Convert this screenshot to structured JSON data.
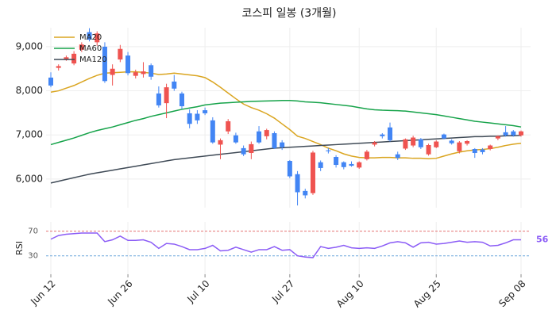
{
  "chart_data": [
    {
      "type": "candlestick",
      "title": "코스피 일봉 (3개월)",
      "categories": [
        "Jun 12",
        null,
        null,
        null,
        null,
        null,
        null,
        null,
        null,
        null,
        "Jun 26",
        null,
        null,
        null,
        null,
        null,
        null,
        null,
        null,
        null,
        "Jul 10",
        null,
        null,
        null,
        null,
        null,
        null,
        null,
        null,
        null,
        null,
        "Jul 27",
        null,
        null,
        null,
        null,
        null,
        null,
        null,
        null,
        "Aug 10",
        null,
        null,
        null,
        null,
        null,
        null,
        null,
        null,
        null,
        "Aug 25",
        null,
        null,
        null,
        null,
        null,
        null,
        null,
        null,
        null,
        null,
        "Sep 08"
      ],
      "open": [
        8300,
        8520,
        8720,
        8620,
        8930,
        9330,
        9100,
        9000,
        8360,
        8710,
        8800,
        8340,
        8380,
        8580,
        7940,
        7720,
        8210,
        7940,
        7490,
        7480,
        7560,
        7330,
        6780,
        7080,
        6990,
        6700,
        6590,
        7080,
        6970,
        7040,
        6830,
        6410,
        6110,
        5730,
        5680,
        6380,
        6650,
        6500,
        6380,
        6340,
        6260,
        6450,
        6780,
        7010,
        7170,
        6560,
        6690,
        6760,
        6900,
        6560,
        6720,
        7010,
        6870,
        6630,
        6800,
        6680,
        6670,
        6680,
        6920,
        7060,
        7080,
        6990
      ],
      "high": [
        8420,
        8600,
        8800,
        8900,
        9100,
        9420,
        9350,
        9100,
        8600,
        9040,
        8880,
        8480,
        8650,
        8620,
        8100,
        8160,
        8360,
        7980,
        7580,
        7560,
        7620,
        7400,
        6920,
        7360,
        7050,
        6760,
        6850,
        7200,
        7140,
        7080,
        6880,
        6430,
        6180,
        5780,
        6640,
        6420,
        6700,
        6540,
        6400,
        6400,
        6400,
        6660,
        6860,
        7040,
        7280,
        6620,
        6920,
        6980,
        6930,
        6800,
        6880,
        7030,
        6900,
        6860,
        6880,
        6700,
        6700,
        6780,
        6990,
        7200,
        7110,
        7100
      ],
      "low": [
        8080,
        8460,
        8680,
        8580,
        8880,
        9120,
        9020,
        8180,
        8120,
        8650,
        8350,
        8280,
        8300,
        8250,
        7620,
        7380,
        8000,
        7590,
        7150,
        7250,
        7450,
        6800,
        6450,
        7020,
        6800,
        6520,
        6450,
        6800,
        6900,
        6680,
        6660,
        6020,
        5400,
        5560,
        5640,
        6180,
        6580,
        6260,
        6220,
        6280,
        6230,
        6420,
        6740,
        6920,
        6850,
        6430,
        6660,
        6720,
        6680,
        6530,
        6700,
        6900,
        6780,
        6580,
        6760,
        6480,
        6560,
        6650,
        6880,
        6960,
        6960,
        6960
      ],
      "close": [
        8120,
        8560,
        8760,
        8840,
        9050,
        9160,
        9300,
        8220,
        8500,
        8950,
        8400,
        8420,
        8440,
        8320,
        7670,
        8080,
        8050,
        7650,
        7250,
        7330,
        7490,
        6830,
        6880,
        7310,
        6830,
        6560,
        6790,
        6830,
        7110,
        6700,
        6720,
        6060,
        5700,
        5630,
        6600,
        6250,
        6630,
        6320,
        6270,
        6300,
        6380,
        6620,
        6830,
        6970,
        6880,
        6480,
        6900,
        6940,
        6720,
        6770,
        6850,
        6920,
        6810,
        6830,
        6860,
        6590,
        6610,
        6760,
        6970,
        6990,
        6990,
        7080
      ],
      "up_color": "#ef5350",
      "down_color": "#4285f4",
      "series": [
        {
          "name": "MA20",
          "color": "#daa520",
          "values": [
            7970,
            8000,
            8060,
            8120,
            8200,
            8280,
            8350,
            8400,
            8410,
            8420,
            8430,
            8430,
            8420,
            8400,
            8370,
            8380,
            8400,
            8380,
            8360,
            8340,
            8300,
            8200,
            8080,
            7950,
            7820,
            7700,
            7620,
            7560,
            7480,
            7380,
            7250,
            7120,
            6970,
            6920,
            6850,
            6780,
            6700,
            6640,
            6570,
            6520,
            6490,
            6480,
            6480,
            6490,
            6490,
            6480,
            6480,
            6470,
            6470,
            6460,
            6470,
            6520,
            6570,
            6610,
            6640,
            6660,
            6670,
            6690,
            6720,
            6760,
            6790,
            6810
          ]
        },
        {
          "name": "MA60",
          "color": "#16a34a",
          "values": [
            6780,
            6830,
            6880,
            6930,
            6990,
            7050,
            7100,
            7140,
            7180,
            7230,
            7280,
            7330,
            7370,
            7420,
            7460,
            7500,
            7540,
            7580,
            7610,
            7640,
            7680,
            7700,
            7720,
            7730,
            7740,
            7750,
            7760,
            7765,
            7770,
            7775,
            7780,
            7780,
            7770,
            7750,
            7740,
            7730,
            7710,
            7690,
            7670,
            7650,
            7620,
            7590,
            7570,
            7560,
            7555,
            7550,
            7540,
            7520,
            7500,
            7480,
            7460,
            7430,
            7400,
            7370,
            7340,
            7310,
            7290,
            7270,
            7250,
            7230,
            7210,
            7180
          ]
        },
        {
          "name": "MA120",
          "color": "#3f4a56",
          "values": [
            5910,
            5950,
            5990,
            6030,
            6070,
            6110,
            6140,
            6170,
            6200,
            6230,
            6260,
            6290,
            6320,
            6350,
            6380,
            6410,
            6440,
            6460,
            6480,
            6500,
            6520,
            6540,
            6560,
            6580,
            6600,
            6620,
            6640,
            6660,
            6680,
            6700,
            6710,
            6720,
            6730,
            6740,
            6750,
            6760,
            6770,
            6780,
            6790,
            6800,
            6810,
            6820,
            6830,
            6840,
            6850,
            6860,
            6870,
            6880,
            6890,
            6900,
            6910,
            6920,
            6930,
            6940,
            6950,
            6960,
            6960,
            6970,
            6970,
            6980,
            6980,
            6990
          ]
        }
      ],
      "ylim": [
        5350,
        9430
      ],
      "yticks": [
        {
          "value": 6000,
          "label": "6,000"
        },
        {
          "value": 7000,
          "label": "7,000"
        },
        {
          "value": 8000,
          "label": "8,000"
        },
        {
          "value": 9000,
          "label": "9,000"
        }
      ],
      "grid": true,
      "legend": "upper left"
    },
    {
      "type": "line",
      "ylabel": "RSI",
      "color": "#8b5cf6",
      "values": [
        57,
        63,
        65,
        66,
        67,
        67,
        67,
        53,
        56,
        62,
        55,
        55,
        56,
        52,
        42,
        50,
        49,
        45,
        40,
        40,
        42,
        47,
        38,
        39,
        44,
        40,
        36,
        40,
        40,
        45,
        39,
        40,
        30,
        28,
        27,
        45,
        42,
        44,
        47,
        43,
        42,
        43,
        42,
        46,
        51,
        53,
        51,
        44,
        51,
        52,
        49,
        50,
        52,
        54,
        52,
        53,
        52,
        46,
        47,
        51,
        56,
        56
      ],
      "ylim": [
        0,
        85
      ],
      "yticks": [
        30,
        70
      ],
      "ytick_colors": [
        "#6fa8dc",
        "#e57373"
      ]
    }
  ]
}
